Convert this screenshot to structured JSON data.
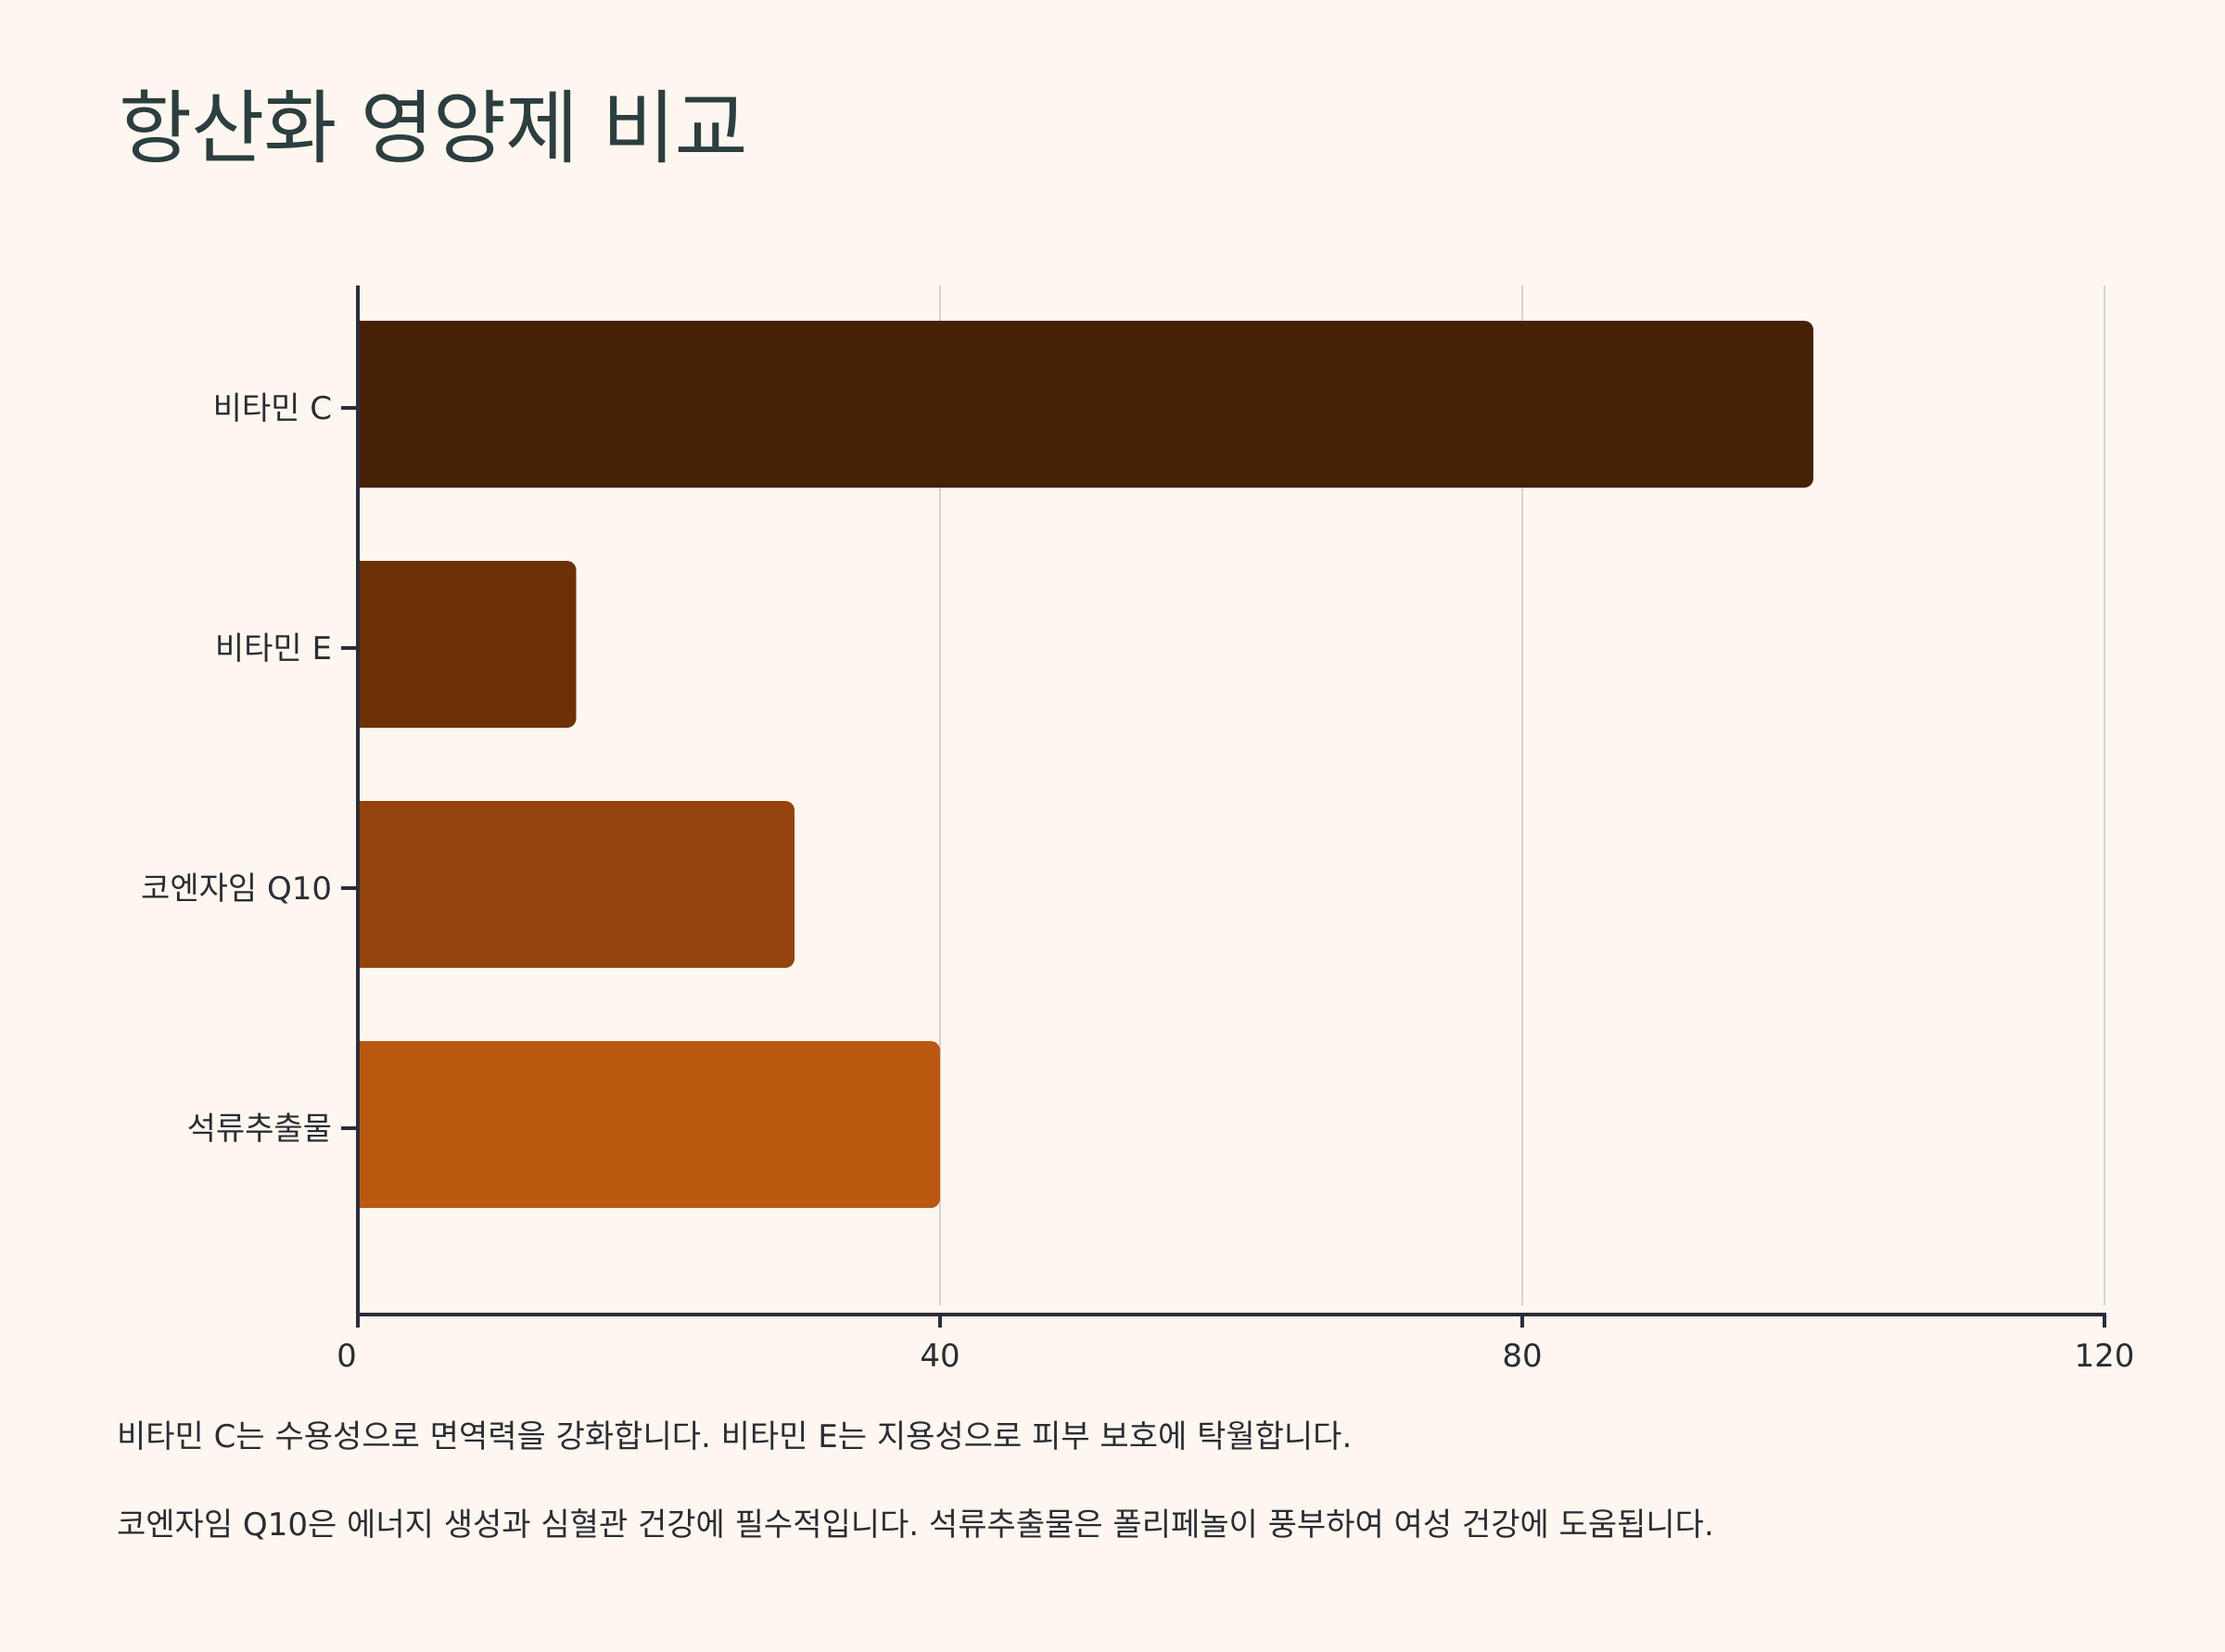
{
  "title": "항산화 영양제 비교",
  "colors": {
    "background": "#FEF7F0",
    "axis": "#2B2D3A",
    "grid": "#D5D3CF",
    "bars": [
      "#472106",
      "#6D3107",
      "#94430C",
      "#BA5810"
    ]
  },
  "chart_data": {
    "type": "bar",
    "orientation": "horizontal",
    "categories": [
      "비타민 C",
      "비타민 E",
      "코엔자임 Q10",
      "석류추출물"
    ],
    "values": [
      100,
      15,
      30,
      40
    ],
    "xlim": [
      0,
      120
    ],
    "xticks": [
      0,
      40,
      80,
      120
    ],
    "xtick_labels": [
      "0",
      "40",
      "80",
      "120"
    ],
    "xlabel": "",
    "ylabel": "",
    "grid": "vertical",
    "legend": "none"
  },
  "notes": [
    "비타민 C는 수용성으로 면역력을 강화합니다. 비타민 E는 지용성으로 피부 보호에 탁월합니다.",
    "코엔자임 Q10은 에너지 생성과 심혈관 건강에 필수적입니다. 석류추출물은 폴리페놀이 풍부하여 여성 건강에 도움됩니다."
  ]
}
